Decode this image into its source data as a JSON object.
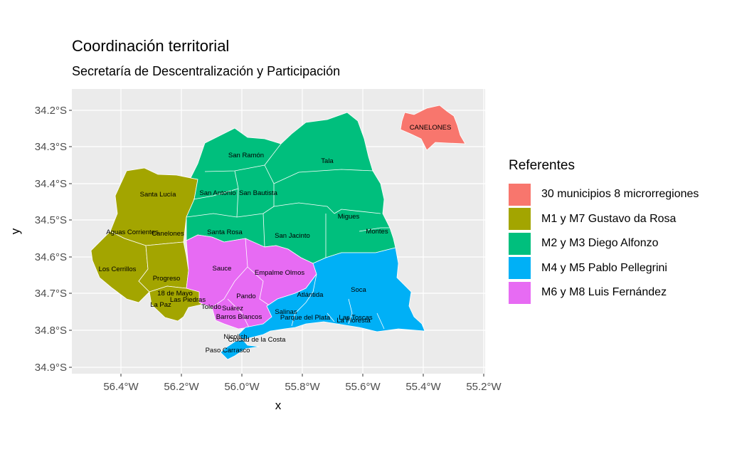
{
  "title": "Coordinación territorial",
  "subtitle": "Secretaría de Descentralización y Participación",
  "axes": {
    "x_label": "x",
    "y_label": "y",
    "x_ticks": [
      "56.4°W",
      "56.2°W",
      "56.0°W",
      "55.8°W",
      "55.6°W",
      "55.4°W",
      "55.2°W"
    ],
    "y_ticks": [
      "34.2°S",
      "34.3°S",
      "34.4°S",
      "34.5°S",
      "34.6°S",
      "34.7°S",
      "34.8°S",
      "34.9°S"
    ]
  },
  "legend": {
    "title": "Referentes",
    "items": [
      {
        "label": "30 municipios 8 microrregiones",
        "color": "#F8766D"
      },
      {
        "label": "M1 y M7 Gustavo da Rosa",
        "color": "#A3A500"
      },
      {
        "label": "M2 y M3 Diego Alfonzo",
        "color": "#00BF7D"
      },
      {
        "label": "M4 y M5 Pablo Pellegrini",
        "color": "#00B0F6"
      },
      {
        "label": "M6 y M8 Luis Fernández",
        "color": "#E76BF3"
      }
    ]
  },
  "labels": {
    "canelones_inset": "CANELONES",
    "m1": [
      "Santa Lucía",
      "Aguas Corrientes",
      "Canelones",
      "Los Cerrillos",
      "Progreso",
      "18 de Mayo",
      "Las Piedras",
      "La Paz"
    ],
    "m2": [
      "San Ramón",
      "Tala",
      "San Antonio",
      "San Bautista",
      "Santa Rosa",
      "San Jacinto",
      "Migues",
      "Montes"
    ],
    "m4": [
      "Soca",
      "Atlántida",
      "Salinas",
      "Parque del Plata",
      "Las Toscas",
      "La Floresta",
      "Nicolich",
      "Ciudad de la Costa",
      "Paso Carrasco"
    ],
    "m6": [
      "Sauce",
      "Empalme Olmos",
      "Pando",
      "Toledo",
      "Suárez",
      "Barros Blancos"
    ]
  },
  "map_data": {
    "region": "Canelones, Uruguay",
    "lon_range": [
      -56.55,
      -55.18
    ],
    "lat_range": [
      -34.92,
      -34.13
    ]
  }
}
